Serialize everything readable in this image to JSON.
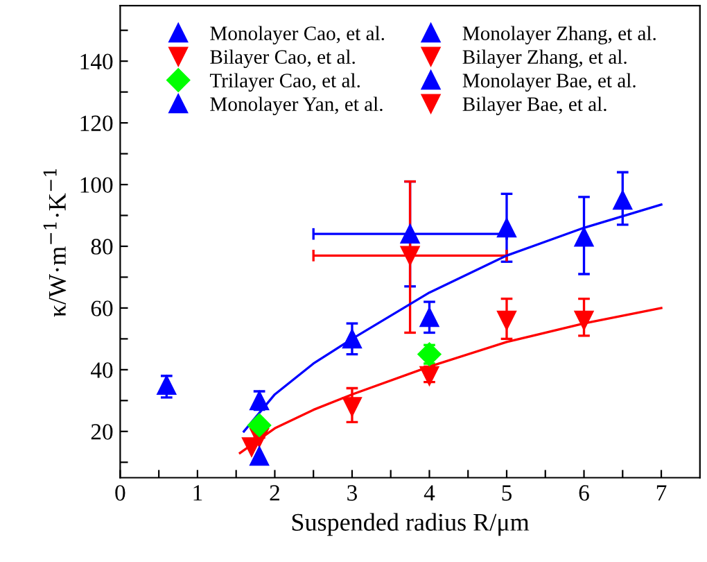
{
  "chart_data": {
    "type": "scatter",
    "xlabel": "Suspended radius R/μm",
    "ylabel": "κ/W·m$^{−1}$·K$^{−1}$",
    "xlim": [
      0,
      7.5
    ],
    "ylim": [
      5,
      158
    ],
    "xticks": [
      0,
      {
        "value": 0.5,
        "label": null
      },
      1,
      {
        "value": 1.5,
        "label": null
      },
      2,
      {
        "value": 2.5,
        "label": null
      },
      3,
      {
        "value": 3.5,
        "label": null
      },
      4,
      {
        "value": 4.5,
        "label": null
      },
      5,
      {
        "value": 5.5,
        "label": null
      },
      6,
      {
        "value": 6.5,
        "label": null
      },
      7
    ],
    "yticks": [
      {
        "value": 10,
        "label": null
      },
      20,
      {
        "value": 30,
        "label": null
      },
      40,
      {
        "value": 50,
        "label": null
      },
      60,
      {
        "value": 70,
        "label": null
      },
      80,
      {
        "value": 90,
        "label": null
      },
      100,
      {
        "value": 110,
        "label": null
      },
      120,
      {
        "value": 130,
        "label": null
      },
      140,
      {
        "value": 150,
        "label": null
      }
    ],
    "grid": false,
    "legend": "top",
    "series": [
      {
        "name": "Monolayer Cao, et al.",
        "marker": "triangle",
        "color": "#0000ff",
        "x": [
          1.8,
          3,
          4,
          5,
          6,
          6.5
        ],
        "values": [
          30,
          50,
          57,
          86,
          83,
          95
        ],
        "errors": [
          [
            27,
            33
          ],
          [
            45,
            55
          ],
          [
            52,
            62
          ],
          [
            75,
            97
          ],
          [
            71,
            96
          ],
          [
            87,
            104
          ]
        ]
      },
      {
        "name": "Bilayer Cao, et al.",
        "marker": "triangle-down",
        "color": "#ff0000",
        "x": [
          1.8,
          3,
          4,
          5,
          6
        ],
        "values": [
          18,
          28,
          38,
          56,
          56
        ],
        "errors": [
          null,
          [
            23,
            34
          ],
          [
            36,
            41
          ],
          [
            50,
            63
          ],
          [
            51,
            63
          ]
        ]
      },
      {
        "name": "Trilayer Cao, et al.",
        "marker": "diamond",
        "color": "#00ff00",
        "x": [
          1.8,
          4
        ],
        "values": [
          22,
          45
        ],
        "errors": [
          null,
          [
            42,
            48
          ]
        ]
      },
      {
        "name": "Monolayer Yan, et al.",
        "marker": "triangle",
        "color": "#0000ff",
        "x": [
          0.6
        ],
        "values": [
          35
        ],
        "errors": [
          [
            31,
            38
          ]
        ]
      },
      {
        "name": "Monolayer Zhang, et al.",
        "marker": "triangle",
        "color": "#0000ff",
        "x": [
          3.75
        ],
        "values": [
          84
        ],
        "errors": [
          [
            67,
            101
          ]
        ],
        "xerrors": [
          [
            2.5,
            5
          ]
        ]
      },
      {
        "name": "Bilayer Zhang, et al.",
        "marker": "triangle-down",
        "color": "#ff0000",
        "x": [
          3.75
        ],
        "values": [
          77
        ],
        "errors": [
          [
            52,
            101
          ]
        ],
        "xerrors": [
          [
            2.5,
            5
          ]
        ]
      },
      {
        "name": "Monolayer Bae, et al.",
        "marker": "triangle",
        "color": "#0000ff",
        "x": [
          1.8
        ],
        "values": [
          12
        ]
      },
      {
        "name": "Bilayer Bae, et al.",
        "marker": "triangle-down",
        "color": "#ff0000",
        "x": [
          1.7
        ],
        "values": [
          15
        ]
      },
      {
        "type": "line",
        "color": "#0000ff",
        "x": [
          1.6,
          2,
          2.5,
          3,
          4,
          5,
          6,
          7
        ],
        "values": [
          20,
          32,
          42,
          50,
          65,
          77,
          86,
          93.5
        ]
      },
      {
        "type": "line",
        "color": "#ff0000",
        "x": [
          1.55,
          2,
          2.5,
          3,
          4,
          5,
          6,
          7
        ],
        "values": [
          13,
          21,
          27,
          32,
          41,
          49,
          55,
          60
        ]
      }
    ]
  }
}
